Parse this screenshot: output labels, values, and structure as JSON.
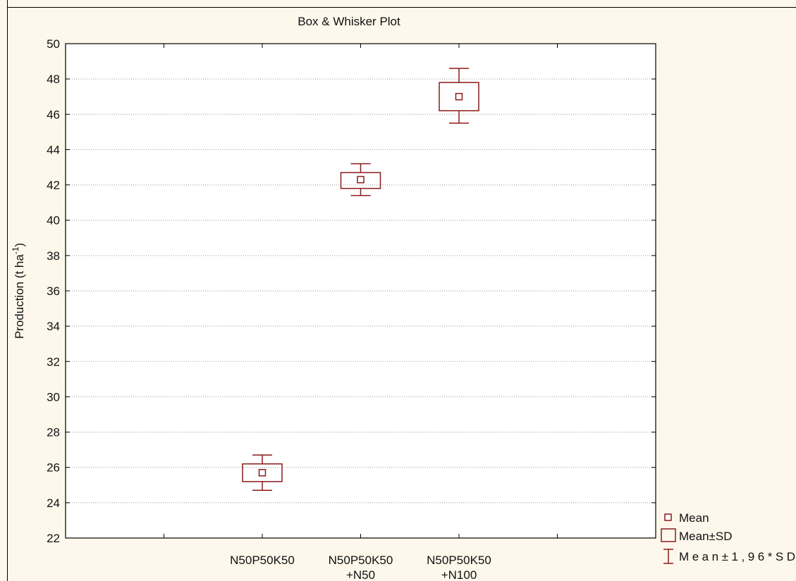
{
  "chart_data": {
    "type": "box",
    "title": "Box & Whisker Plot",
    "ylabel_main": "Production (t ha",
    "ylabel_sup": "-1",
    "ylabel_close": ")",
    "ylim": [
      22,
      50
    ],
    "yticks": [
      22,
      24,
      26,
      28,
      30,
      32,
      34,
      36,
      38,
      40,
      42,
      44,
      46,
      48,
      50
    ],
    "grid": true,
    "legend_position": "bottom-right-outside",
    "colors": {
      "series": "#8b1a1a",
      "grid": "#9a9a9a",
      "background": "#fdf8eb"
    },
    "categories": [
      {
        "line1": "N50P50K50",
        "line2": ""
      },
      {
        "line1": "N50P50K50",
        "line2": "+N50"
      },
      {
        "line1": "N50P50K50",
        "line2": "+N100"
      }
    ],
    "series": [
      {
        "mean": 25.7,
        "sd_low": 25.2,
        "sd_high": 26.2,
        "whisker_low": 24.7,
        "whisker_high": 26.7
      },
      {
        "mean": 42.3,
        "sd_low": 41.8,
        "sd_high": 42.7,
        "whisker_low": 41.4,
        "whisker_high": 43.2
      },
      {
        "mean": 47.0,
        "sd_low": 46.2,
        "sd_high": 47.8,
        "whisker_low": 45.5,
        "whisker_high": 48.6
      }
    ],
    "legend": [
      {
        "key": "mean",
        "label": "Mean"
      },
      {
        "key": "sd",
        "label": "Mean±SD"
      },
      {
        "key": "whisker",
        "label": "Mean±1,96*SD"
      }
    ]
  }
}
